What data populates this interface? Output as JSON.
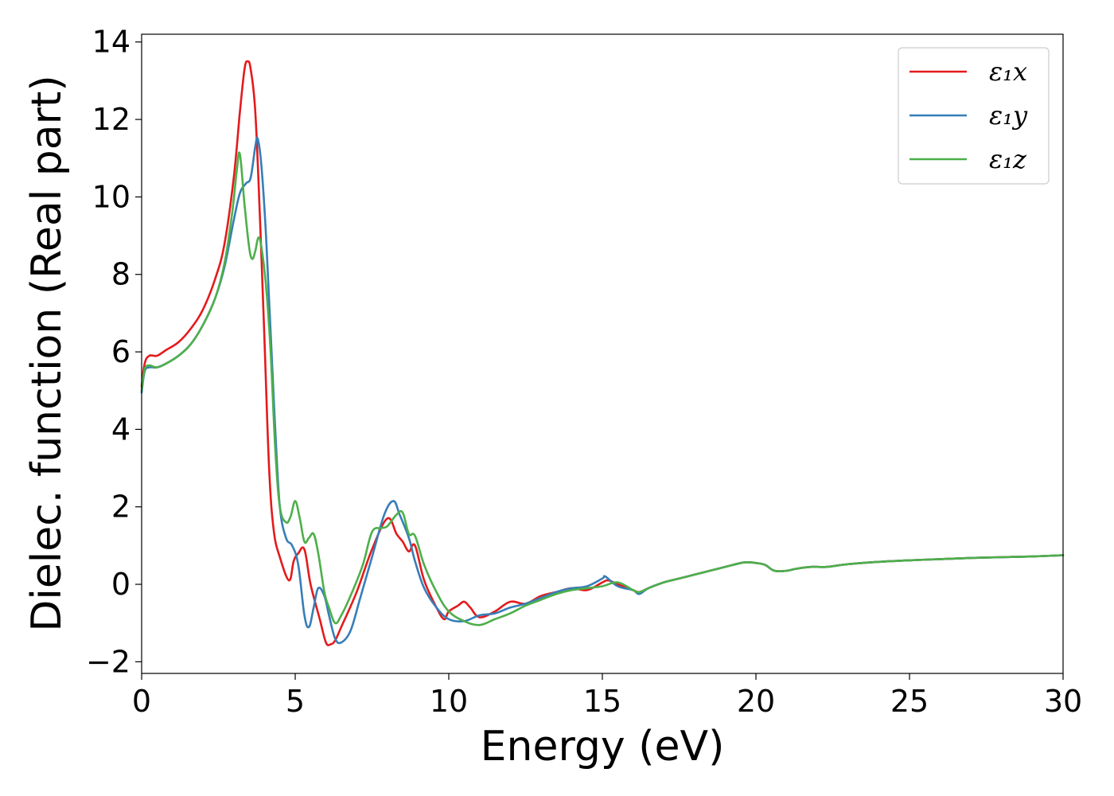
{
  "chart_data": {
    "type": "line",
    "title": "",
    "xlabel": "Energy (eV)",
    "ylabel": "Dielec. function (Real part)",
    "xlim": [
      0,
      30
    ],
    "ylim": [
      -2.3,
      14.2
    ],
    "xticks": [
      0,
      5,
      10,
      15,
      20,
      25,
      30
    ],
    "yticks": [
      -2,
      0,
      2,
      4,
      6,
      8,
      10,
      12,
      14
    ],
    "ytick_labels": [
      "−2",
      "0",
      "2",
      "4",
      "6",
      "8",
      "10",
      "12",
      "14"
    ],
    "grid": false,
    "legend_position": "top-right",
    "series": [
      {
        "name": "ε₁x",
        "color": "#e41a1c",
        "x": [
          0,
          0.1,
          0.25,
          0.5,
          0.8,
          1.2,
          1.6,
          2.0,
          2.4,
          2.7,
          3.0,
          3.2,
          3.35,
          3.45,
          3.55,
          3.7,
          3.85,
          4.0,
          4.15,
          4.3,
          4.5,
          4.8,
          4.95,
          5.1,
          5.3,
          5.5,
          5.8,
          6.0,
          6.15,
          6.3,
          6.5,
          7.0,
          7.5,
          8.0,
          8.3,
          8.5,
          8.7,
          8.9,
          9.2,
          9.6,
          9.85,
          10.0,
          10.3,
          10.5,
          10.7,
          11.0,
          11.5,
          12.0,
          12.5,
          13.0,
          13.5,
          14.0,
          14.5,
          15.0,
          15.2,
          15.5,
          16.0,
          16.2,
          16.5,
          17.0,
          17.5,
          18.0,
          18.5,
          19.0,
          19.5,
          19.7,
          20.0,
          20.3,
          20.6,
          21.0,
          21.3,
          21.8,
          22.3,
          23.0,
          24.0,
          25.0,
          26.0,
          27.0,
          28.0,
          29.0,
          30.0
        ],
        "values": [
          5.1,
          5.7,
          5.9,
          5.9,
          6.05,
          6.25,
          6.6,
          7.1,
          7.9,
          8.8,
          10.5,
          12.2,
          13.3,
          13.5,
          13.3,
          12.2,
          9.5,
          6.3,
          3.0,
          1.4,
          0.7,
          0.1,
          0.6,
          0.8,
          0.9,
          0.0,
          -0.9,
          -1.5,
          -1.55,
          -1.45,
          -1.1,
          -0.2,
          0.9,
          1.7,
          1.3,
          1.1,
          0.85,
          1.0,
          0.1,
          -0.6,
          -0.9,
          -0.7,
          -0.55,
          -0.45,
          -0.6,
          -0.85,
          -0.7,
          -0.45,
          -0.5,
          -0.3,
          -0.2,
          -0.1,
          -0.15,
          0.05,
          0.1,
          0.0,
          -0.15,
          -0.2,
          -0.1,
          0.05,
          0.15,
          0.25,
          0.35,
          0.45,
          0.55,
          0.57,
          0.55,
          0.5,
          0.35,
          0.35,
          0.4,
          0.45,
          0.45,
          0.52,
          0.58,
          0.62,
          0.65,
          0.68,
          0.7,
          0.72,
          0.75
        ]
      },
      {
        "name": "ε₁y",
        "color": "#377eb8",
        "x": [
          0,
          0.1,
          0.25,
          0.5,
          0.8,
          1.2,
          1.6,
          2.0,
          2.4,
          2.7,
          3.0,
          3.2,
          3.4,
          3.55,
          3.7,
          3.78,
          3.9,
          4.05,
          4.2,
          4.35,
          4.5,
          4.7,
          4.9,
          5.1,
          5.3,
          5.45,
          5.6,
          5.75,
          5.95,
          6.1,
          6.3,
          6.5,
          6.8,
          7.1,
          7.5,
          7.9,
          8.2,
          8.4,
          8.7,
          8.9,
          9.2,
          9.6,
          10.0,
          10.5,
          11.0,
          11.5,
          12.0,
          12.5,
          13.0,
          13.5,
          14.0,
          14.5,
          15.0,
          15.1,
          15.5,
          16.0,
          16.2,
          16.5,
          17.0,
          17.5,
          18.0,
          18.5,
          19.0,
          19.5,
          19.7,
          20.0,
          20.3,
          20.6,
          21.0,
          21.3,
          21.8,
          22.3,
          23.0,
          24.0,
          25.0,
          26.0,
          27.0,
          28.0,
          29.0,
          30.0
        ],
        "values": [
          4.95,
          5.5,
          5.6,
          5.6,
          5.7,
          5.9,
          6.2,
          6.7,
          7.4,
          8.2,
          9.4,
          10.1,
          10.35,
          10.5,
          11.3,
          11.5,
          10.8,
          9.0,
          6.5,
          4.0,
          2.0,
          1.2,
          1.0,
          0.5,
          -0.8,
          -1.1,
          -0.6,
          -0.1,
          -0.3,
          -0.8,
          -1.4,
          -1.5,
          -1.2,
          -0.4,
          0.7,
          1.8,
          2.15,
          1.8,
          1.2,
          0.6,
          -0.1,
          -0.6,
          -0.9,
          -0.95,
          -0.8,
          -0.75,
          -0.6,
          -0.5,
          -0.35,
          -0.2,
          -0.1,
          -0.05,
          0.15,
          0.2,
          -0.05,
          -0.15,
          -0.25,
          -0.1,
          0.05,
          0.15,
          0.25,
          0.35,
          0.45,
          0.55,
          0.57,
          0.55,
          0.5,
          0.35,
          0.35,
          0.4,
          0.45,
          0.45,
          0.52,
          0.58,
          0.62,
          0.65,
          0.68,
          0.7,
          0.72,
          0.75
        ]
      },
      {
        "name": "ε₁z",
        "color": "#4daf4a",
        "x": [
          0,
          0.1,
          0.25,
          0.5,
          0.8,
          1.2,
          1.6,
          2.0,
          2.4,
          2.7,
          2.95,
          3.1,
          3.2,
          3.35,
          3.5,
          3.6,
          3.7,
          3.8,
          3.9,
          4.05,
          4.2,
          4.35,
          4.5,
          4.7,
          4.85,
          5.0,
          5.15,
          5.3,
          5.45,
          5.6,
          5.75,
          5.95,
          6.1,
          6.3,
          6.5,
          6.8,
          7.2,
          7.5,
          7.8,
          8.0,
          8.3,
          8.5,
          8.7,
          8.9,
          9.2,
          9.6,
          10.0,
          10.5,
          11.0,
          11.5,
          12.0,
          12.5,
          13.0,
          13.5,
          14.0,
          14.5,
          15.0,
          15.5,
          16.0,
          16.2,
          16.5,
          17.0,
          17.5,
          18.0,
          18.5,
          19.0,
          19.5,
          19.7,
          20.0,
          20.3,
          20.6,
          21.0,
          21.3,
          21.8,
          22.3,
          23.0,
          24.0,
          25.0,
          26.0,
          27.0,
          28.0,
          29.0,
          30.0
        ],
        "values": [
          5.0,
          5.55,
          5.65,
          5.6,
          5.7,
          5.9,
          6.2,
          6.7,
          7.4,
          8.3,
          9.6,
          10.7,
          11.1,
          9.8,
          8.7,
          8.4,
          8.6,
          8.95,
          8.7,
          7.7,
          6.0,
          3.5,
          2.0,
          1.6,
          1.75,
          2.15,
          1.7,
          1.1,
          1.2,
          1.3,
          0.8,
          -0.2,
          -0.6,
          -1.0,
          -0.8,
          -0.3,
          0.5,
          1.35,
          1.45,
          1.5,
          1.8,
          1.85,
          1.3,
          1.25,
          0.5,
          -0.2,
          -0.7,
          -0.95,
          -1.05,
          -0.9,
          -0.75,
          -0.55,
          -0.4,
          -0.25,
          -0.15,
          -0.1,
          -0.05,
          0.05,
          -0.15,
          -0.2,
          -0.1,
          0.05,
          0.15,
          0.25,
          0.35,
          0.45,
          0.55,
          0.57,
          0.55,
          0.5,
          0.35,
          0.35,
          0.4,
          0.45,
          0.45,
          0.52,
          0.58,
          0.62,
          0.65,
          0.68,
          0.7,
          0.72,
          0.75
        ]
      }
    ]
  }
}
